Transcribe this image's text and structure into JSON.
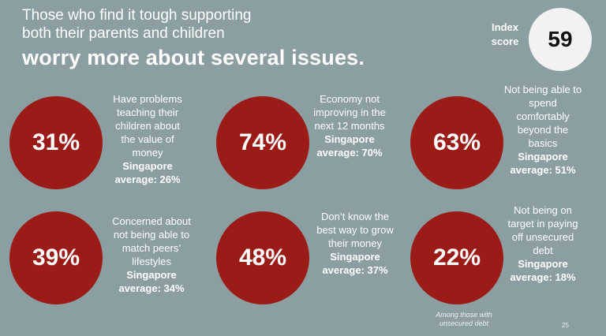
{
  "header": {
    "subtitle_line1": "Those who find it tough supporting",
    "subtitle_line2": "both their parents and children",
    "headline": "worry more about several issues."
  },
  "index": {
    "label": "Index score",
    "value": "59"
  },
  "stats": [
    {
      "value": "31%",
      "text": "Have problems teaching their children about the value of money",
      "avg_label": "Singapore",
      "avg_value": "average: 26%"
    },
    {
      "value": "74%",
      "text": "Economy not improving in the next 12 months",
      "avg_label": "Singapore",
      "avg_value": "average: 70%"
    },
    {
      "value": "63%",
      "text": "Not being able to spend comfortably beyond the basics",
      "avg_label": "Singapore",
      "avg_value": "average: 51%"
    },
    {
      "value": "39%",
      "text": "Concerned about not being able to match peers’ lifestyles",
      "avg_label": "Singapore",
      "avg_value": "average: 34%"
    },
    {
      "value": "48%",
      "text": "Don’t know the best way to grow their money",
      "avg_label": "Singapore",
      "avg_value": "average: 37%"
    },
    {
      "value": "22%",
      "text": "Not being on target in paying off unsecured debt",
      "avg_label": "Singapore",
      "avg_value": "average: 18%"
    }
  ],
  "footnote": "Among those with unsecured debt",
  "page_number": "25",
  "colors": {
    "background": "#8b9ea1",
    "circle": "#9b1b17",
    "index_circle": "#f2f2f2"
  }
}
